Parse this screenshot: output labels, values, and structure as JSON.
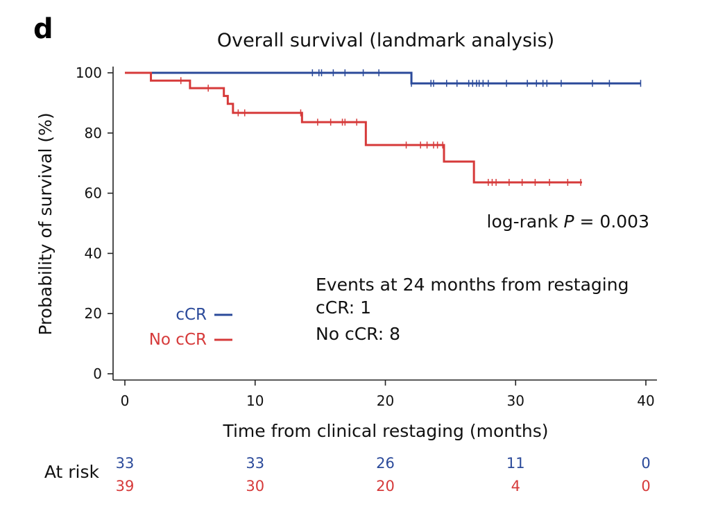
{
  "panel_letter": "d",
  "chart_data": {
    "type": "line",
    "step": true,
    "title": "Overall survival (landmark analysis)",
    "xlabel": "Time from clinical restaging (months)",
    "ylabel": "Probability of survival (%)",
    "xlim": [
      0,
      40
    ],
    "ylim": [
      0,
      100
    ],
    "xticks": [
      "0",
      "10",
      "20",
      "30",
      "40"
    ],
    "yticks": [
      "0",
      "20",
      "40",
      "60",
      "80",
      "100"
    ],
    "grid": false,
    "legend": {
      "placement": "lower-left",
      "entries": [
        {
          "label": "cCR",
          "color": "#2b4a9a"
        },
        {
          "label": "No cCR",
          "color": "#d63a3a"
        }
      ]
    },
    "series": [
      {
        "name": "cCR",
        "color": "#2b4a9a",
        "steps": [
          [
            0,
            100
          ],
          [
            22,
            96.5
          ]
        ],
        "end": 39.6,
        "censored": [
          14.4,
          14.9,
          15.1,
          16.0,
          16.9,
          18.3,
          19.5,
          22.0,
          23.5,
          23.7,
          24.7,
          25.5,
          26.4,
          26.7,
          27.0,
          27.2,
          27.5,
          27.9,
          29.3,
          30.9,
          31.6,
          32.1,
          32.4,
          33.5,
          35.9,
          37.2,
          39.6
        ]
      },
      {
        "name": "No cCR",
        "color": "#d63a3a",
        "steps": [
          [
            0,
            100
          ],
          [
            2.0,
            97.4
          ],
          [
            5.0,
            94.9
          ],
          [
            7.6,
            92.3
          ],
          [
            7.9,
            89.7
          ],
          [
            8.3,
            86.7
          ],
          [
            13.6,
            83.6
          ],
          [
            18.5,
            76.0
          ],
          [
            24.5,
            70.5
          ],
          [
            26.8,
            63.6
          ]
        ],
        "end": 35.1,
        "censored": [
          4.3,
          6.4,
          8.7,
          9.2,
          13.5,
          14.8,
          15.8,
          16.7,
          16.9,
          17.8,
          21.6,
          22.7,
          23.2,
          23.7,
          24.0,
          24.4,
          27.9,
          28.2,
          28.5,
          29.5,
          30.5,
          31.5,
          32.6,
          34.0,
          35.0
        ]
      }
    ],
    "annotations": {
      "logrank_prefix": "log-rank ",
      "logrank_p": "P",
      "logrank_suffix": " = 0.003",
      "events_title": "Events at 24 months from restaging",
      "events_ccr": "cCR: 1",
      "events_noccr": "No cCR: 8"
    },
    "at_risk": {
      "title": "At risk",
      "times": [
        0,
        10,
        20,
        30,
        40
      ],
      "rows": [
        {
          "color": "#2b4a9a",
          "values": [
            "33",
            "33",
            "26",
            "11",
            "0"
          ]
        },
        {
          "color": "#d63a3a",
          "values": [
            "39",
            "30",
            "20",
            "4",
            "0"
          ]
        }
      ]
    }
  }
}
